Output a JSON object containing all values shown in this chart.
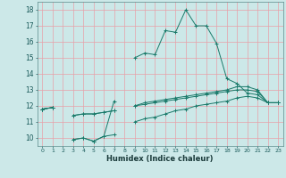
{
  "xlabel": "Humidex (Indice chaleur)",
  "x_values": [
    0,
    1,
    2,
    3,
    4,
    5,
    6,
    7,
    8,
    9,
    10,
    11,
    12,
    13,
    14,
    15,
    16,
    17,
    18,
    19,
    20,
    21,
    22,
    23
  ],
  "line1": [
    11.8,
    11.9,
    null,
    9.9,
    10.0,
    9.8,
    10.1,
    12.3,
    null,
    15.0,
    15.3,
    15.2,
    16.7,
    16.6,
    18.0,
    17.0,
    17.0,
    15.9,
    13.7,
    13.4,
    12.8,
    12.7,
    12.2,
    12.2
  ],
  "line2": [
    11.8,
    11.9,
    null,
    11.4,
    11.5,
    11.5,
    11.6,
    11.7,
    null,
    12.0,
    12.1,
    12.2,
    12.3,
    12.4,
    12.5,
    12.6,
    12.7,
    12.8,
    12.9,
    13.0,
    13.0,
    12.9,
    12.2,
    12.2
  ],
  "line3": [
    11.8,
    11.9,
    null,
    11.4,
    11.5,
    11.5,
    11.6,
    11.7,
    null,
    12.0,
    12.2,
    12.3,
    12.4,
    12.5,
    12.6,
    12.7,
    12.8,
    12.9,
    13.0,
    13.2,
    13.2,
    13.0,
    12.2,
    12.2
  ],
  "line4": [
    11.8,
    11.9,
    null,
    9.9,
    10.0,
    9.8,
    10.1,
    10.2,
    null,
    11.0,
    11.2,
    11.3,
    11.5,
    11.7,
    11.8,
    12.0,
    12.1,
    12.2,
    12.3,
    12.5,
    12.6,
    12.5,
    12.2,
    12.2
  ],
  "line_color": "#1a7a6a",
  "bg_color": "#cce8e8",
  "grid_color": "#e8a0a8",
  "ylim": [
    9.5,
    18.5
  ],
  "xlim": [
    -0.5,
    23.5
  ],
  "yticks": [
    10,
    11,
    12,
    13,
    14,
    15,
    16,
    17,
    18
  ],
  "xtick_fontsize": 4.5,
  "ytick_fontsize": 5.5,
  "xlabel_fontsize": 6.0,
  "linewidth": 0.7,
  "marker_size": 2.5
}
